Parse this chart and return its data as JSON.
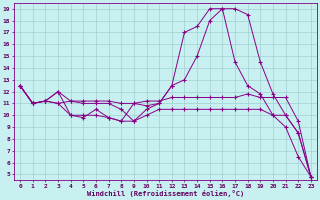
{
  "xlabel": "Windchill (Refroidissement éolien,°C)",
  "ylabel": "",
  "background_color": "#c8f0f0",
  "line_color": "#880088",
  "grid_color": "#a0d0d0",
  "xlim": [
    -0.5,
    23.5
  ],
  "ylim": [
    4.5,
    19.5
  ],
  "xticks": [
    0,
    1,
    2,
    3,
    4,
    5,
    6,
    7,
    8,
    9,
    10,
    11,
    12,
    13,
    14,
    15,
    16,
    17,
    18,
    19,
    20,
    21,
    22,
    23
  ],
  "yticks": [
    5,
    6,
    7,
    8,
    9,
    10,
    11,
    12,
    13,
    14,
    15,
    16,
    17,
    18,
    19
  ],
  "lines": [
    [
      12.5,
      11.0,
      11.2,
      12.0,
      11.2,
      11.0,
      11.0,
      11.0,
      10.5,
      9.5,
      10.5,
      11.0,
      12.5,
      13.0,
      15.0,
      18.0,
      19.0,
      19.0,
      18.5,
      14.5,
      11.8,
      10.0,
      8.5,
      4.8
    ],
    [
      12.5,
      11.0,
      11.2,
      12.0,
      10.0,
      9.8,
      10.5,
      9.8,
      9.5,
      11.0,
      10.8,
      11.0,
      12.5,
      17.0,
      17.5,
      19.0,
      19.0,
      14.5,
      12.5,
      11.8,
      10.0,
      9.0,
      6.5,
      4.8
    ],
    [
      12.5,
      11.0,
      11.2,
      11.0,
      11.2,
      11.2,
      11.2,
      11.2,
      11.0,
      11.0,
      11.2,
      11.2,
      11.5,
      11.5,
      11.5,
      11.5,
      11.5,
      11.5,
      11.8,
      11.5,
      11.5,
      11.5,
      9.5,
      4.8
    ],
    [
      12.5,
      11.0,
      11.2,
      11.0,
      10.0,
      10.0,
      10.0,
      9.8,
      9.5,
      9.5,
      10.0,
      10.5,
      10.5,
      10.5,
      10.5,
      10.5,
      10.5,
      10.5,
      10.5,
      10.5,
      10.0,
      10.0,
      8.5,
      4.8
    ]
  ]
}
